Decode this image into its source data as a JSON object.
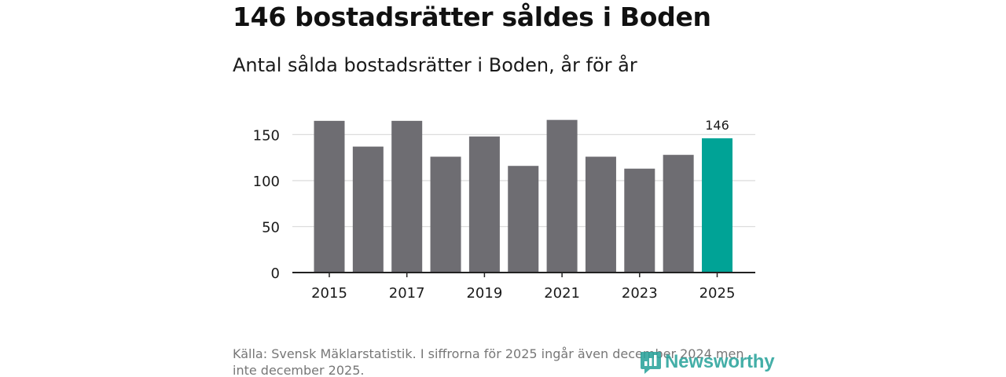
{
  "header": {
    "title": "146 bostadsrätter såldes i Boden",
    "subtitle": "Antal sålda bostadsrätter i Boden, år för år"
  },
  "footer": {
    "source": "Källa: Svensk Mäklarstatistik. I siffrorna för 2025 ingår även december 2024 men inte december 2025.",
    "brand": "Newsworthy"
  },
  "colors": {
    "bar": "#6e6d72",
    "highlight": "#00a396",
    "grid": "#dddddd",
    "axis": "#222222",
    "brand": "#2aa39b"
  },
  "chart_data": {
    "type": "bar",
    "title": "Antal sålda bostadsrätter i Boden, år för år",
    "categories": [
      "2015",
      "2016",
      "2017",
      "2018",
      "2019",
      "2020",
      "2021",
      "2022",
      "2023",
      "2024",
      "2025"
    ],
    "values": [
      165,
      137,
      165,
      126,
      148,
      116,
      166,
      126,
      113,
      128,
      146
    ],
    "highlight_index": 10,
    "data_labels": [
      {
        "index": 10,
        "text": "146"
      }
    ],
    "x_tick_labels": [
      "2015",
      "2017",
      "2019",
      "2021",
      "2023",
      "2025"
    ],
    "y_ticks": [
      0,
      50,
      100,
      150
    ],
    "ylim": [
      0,
      170
    ],
    "xlabel": "",
    "ylabel": "",
    "grid": true,
    "legend": "none"
  }
}
